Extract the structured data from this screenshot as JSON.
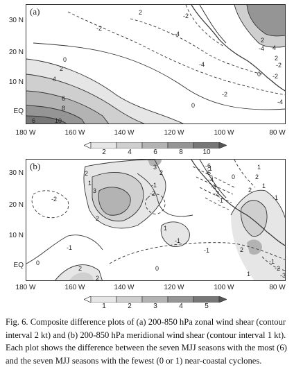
{
  "panel_a": {
    "label": "(a)",
    "lat_labels": [
      "30 N",
      "20 N",
      "10 N",
      "EQ"
    ],
    "lon_labels": [
      "180 W",
      "160 W",
      "140 W",
      "120 W",
      "100 W",
      "80 W"
    ],
    "colorbar_labels": [
      "2",
      "4",
      "6",
      "8",
      "10"
    ],
    "contour_labels": [
      "2",
      "-2",
      "-2",
      "-4",
      "-4",
      "-2",
      "0",
      "0",
      "2",
      "4",
      "6",
      "8",
      "10",
      "0",
      "-2",
      "-4",
      "-4",
      "2",
      "4",
      "2",
      "-2",
      "6"
    ]
  },
  "panel_b": {
    "label": "(b)",
    "lat_labels": [
      "30 N",
      "20 N",
      "10 N",
      "EQ"
    ],
    "lon_labels": [
      "180 W",
      "160 W",
      "140 W",
      "120 W",
      "100 W",
      "80 W"
    ],
    "colorbar_labels": [
      "1",
      "2",
      "3",
      "4",
      "5"
    ],
    "contour_labels": [
      "-2",
      "2",
      "1",
      "3",
      "3",
      "2",
      "-1",
      "-2",
      "2",
      "1",
      "-1",
      "0",
      "-1",
      "0",
      "2",
      "2",
      "-1",
      "-6",
      "-5",
      "-4",
      "-3",
      "-2",
      "-1",
      "1",
      "2",
      "-1",
      "2",
      "-1",
      "-2",
      "-3",
      "2",
      "1",
      "0",
      "-1",
      "1"
    ]
  },
  "caption": "Fig. 6. Composite difference plots of (a) 200-850 hPa zonal wind shear (contour interval 2 kt) and (b) 200-850 hPa meridional wind shear (contour interval 1 kt). Each plot shows the difference between the seven MJJ seasons with the most (6) and the seven MJJ seasons with the fewest (0 or 1) near-coastal cyclones.",
  "colors": {
    "shade1": "#e6e6e6",
    "shade2": "#cfcfcf",
    "shade3": "#b3b3b3",
    "shade4": "#959595",
    "shade5": "#777777",
    "land": "#444444"
  }
}
